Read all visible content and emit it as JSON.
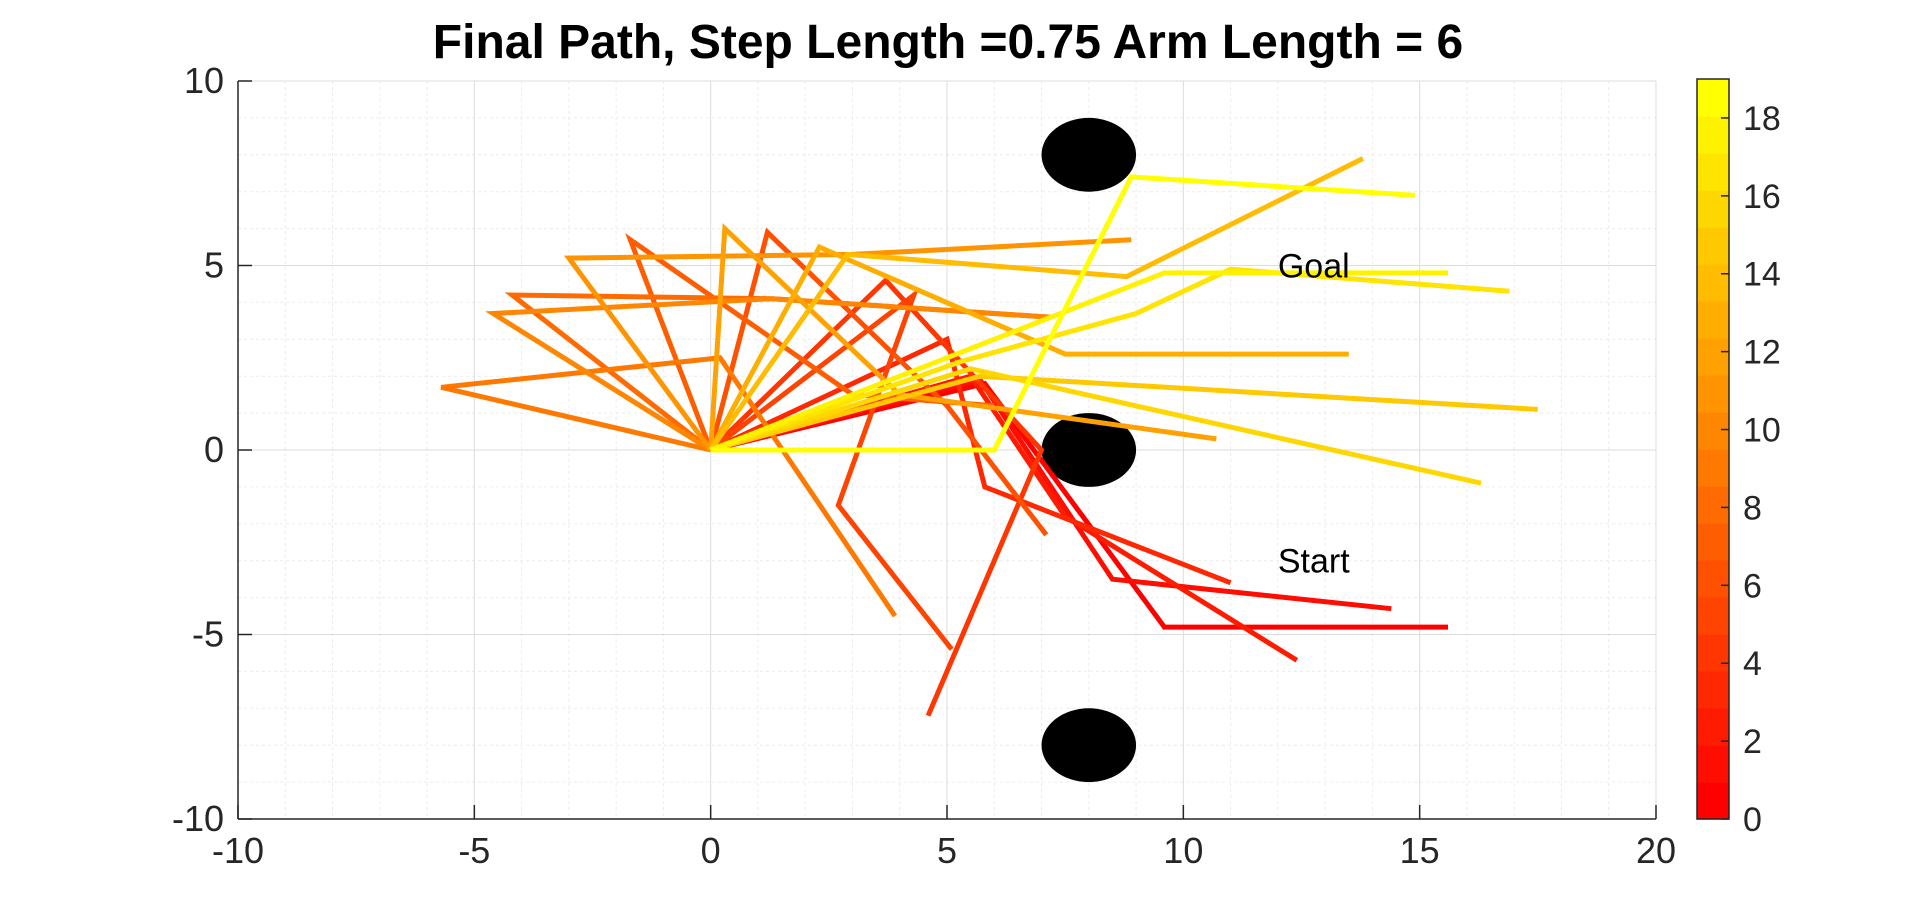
{
  "chart_data": {
    "type": "line",
    "title": "Final Path, Step Length =0.75 Arm Length = 6",
    "xlabel": "",
    "ylabel": "",
    "xlim": [
      -10,
      20
    ],
    "ylim": [
      -10,
      10
    ],
    "xticks": [
      "-10",
      "-5",
      "0",
      "5",
      "10",
      "15",
      "20"
    ],
    "yticks": [
      "-10",
      "-5",
      "0",
      "5",
      "10"
    ],
    "grid": true,
    "minor_grid": true,
    "colorbar": {
      "range": [
        0,
        19
      ],
      "ticks": [
        "0",
        "2",
        "4",
        "6",
        "8",
        "10",
        "12",
        "14",
        "16",
        "18"
      ],
      "colormap": "autumn",
      "color_low": "#ff0000",
      "color_high": "#ffff00",
      "levels": 20
    },
    "annotations": [
      {
        "text": "Goal",
        "x": 12,
        "y": 5
      },
      {
        "text": "Start",
        "x": 12,
        "y": -3
      }
    ],
    "obstacles": [
      {
        "x": 8,
        "y": 8,
        "r": 1,
        "color": "#000000"
      },
      {
        "x": 8,
        "y": 0,
        "r": 1,
        "color": "#000000"
      },
      {
        "x": 8,
        "y": -8,
        "r": 1,
        "color": "#000000"
      }
    ],
    "arm_configurations": [
      {
        "step": 0,
        "points": [
          [
            0,
            0
          ],
          [
            5.8,
            1.8
          ],
          [
            9.6,
            -4.8
          ],
          [
            15.6,
            -4.8
          ]
        ]
      },
      {
        "step": 1,
        "points": [
          [
            0,
            0
          ],
          [
            5.7,
            1.9
          ],
          [
            8.5,
            -3.5
          ],
          [
            14.4,
            -4.3
          ]
        ]
      },
      {
        "step": 2,
        "points": [
          [
            0,
            0
          ],
          [
            5.5,
            2.0
          ],
          [
            7.5,
            -1.8
          ],
          [
            12.4,
            -5.7
          ]
        ]
      },
      {
        "step": 3,
        "points": [
          [
            0,
            0
          ],
          [
            5.0,
            3.0
          ],
          [
            5.8,
            -1.0
          ],
          [
            11.0,
            -3.6
          ]
        ]
      },
      {
        "step": 4,
        "points": [
          [
            0,
            0
          ],
          [
            3.7,
            4.6
          ],
          [
            7.0,
            0.0
          ],
          [
            4.6,
            -7.2
          ]
        ]
      },
      {
        "step": 5,
        "points": [
          [
            0,
            0
          ],
          [
            4.3,
            4.2
          ],
          [
            2.7,
            -1.5
          ],
          [
            5.1,
            -5.4
          ]
        ]
      },
      {
        "step": 6,
        "points": [
          [
            0,
            0
          ],
          [
            1.2,
            5.9
          ],
          [
            5.0,
            1.2
          ],
          [
            7.1,
            -2.3
          ]
        ]
      },
      {
        "step": 7,
        "points": [
          [
            0,
            0
          ],
          [
            -1.7,
            5.7
          ],
          [
            3.0,
            1.5
          ],
          [
            6.0,
            1.2
          ]
        ]
      },
      {
        "step": 8,
        "points": [
          [
            0,
            0
          ],
          [
            -4.2,
            4.2
          ],
          [
            1.3,
            4.1
          ],
          [
            7.2,
            3.6
          ]
        ]
      },
      {
        "step": 9,
        "points": [
          [
            0,
            0
          ],
          [
            -5.7,
            1.7
          ],
          [
            0.2,
            2.5
          ],
          [
            3.9,
            -4.5
          ]
        ]
      },
      {
        "step": 10,
        "points": [
          [
            0,
            0
          ],
          [
            -4.6,
            3.7
          ],
          [
            1.3,
            4.1
          ],
          [
            7.2,
            3.6
          ]
        ]
      },
      {
        "step": 11,
        "points": [
          [
            0,
            0
          ],
          [
            -3.0,
            5.2
          ],
          [
            3.0,
            5.3
          ],
          [
            8.9,
            5.7
          ]
        ]
      },
      {
        "step": 12,
        "points": [
          [
            0,
            0
          ],
          [
            0.3,
            6.0
          ],
          [
            4.0,
            1.5
          ],
          [
            10.7,
            0.3
          ]
        ]
      },
      {
        "step": 13,
        "points": [
          [
            0,
            0
          ],
          [
            2.3,
            5.5
          ],
          [
            7.5,
            2.6
          ],
          [
            13.5,
            2.6
          ]
        ]
      },
      {
        "step": 14,
        "points": [
          [
            0,
            0
          ],
          [
            2.9,
            5.3
          ],
          [
            8.8,
            4.7
          ],
          [
            13.8,
            7.9
          ]
        ]
      },
      {
        "step": 15,
        "points": [
          [
            0,
            0
          ],
          [
            5.7,
            2.0
          ],
          [
            17.5,
            1.1
          ]
        ]
      },
      {
        "step": 16,
        "points": [
          [
            0,
            0
          ],
          [
            5.5,
            2.2
          ],
          [
            16.3,
            -0.9
          ]
        ]
      },
      {
        "step": 17,
        "points": [
          [
            0,
            0
          ],
          [
            5.3,
            2.4
          ],
          [
            9.0,
            3.7
          ],
          [
            11.0,
            4.9
          ],
          [
            16.9,
            4.3
          ]
        ]
      },
      {
        "step": 18,
        "points": [
          [
            0,
            0
          ],
          [
            5.0,
            2.5
          ],
          [
            9.6,
            4.8
          ],
          [
            15.6,
            4.8
          ]
        ]
      },
      {
        "step": 19,
        "points": [
          [
            0,
            0
          ],
          [
            6.0,
            0.0
          ],
          [
            8.9,
            7.4
          ],
          [
            14.9,
            6.9
          ]
        ]
      }
    ]
  }
}
